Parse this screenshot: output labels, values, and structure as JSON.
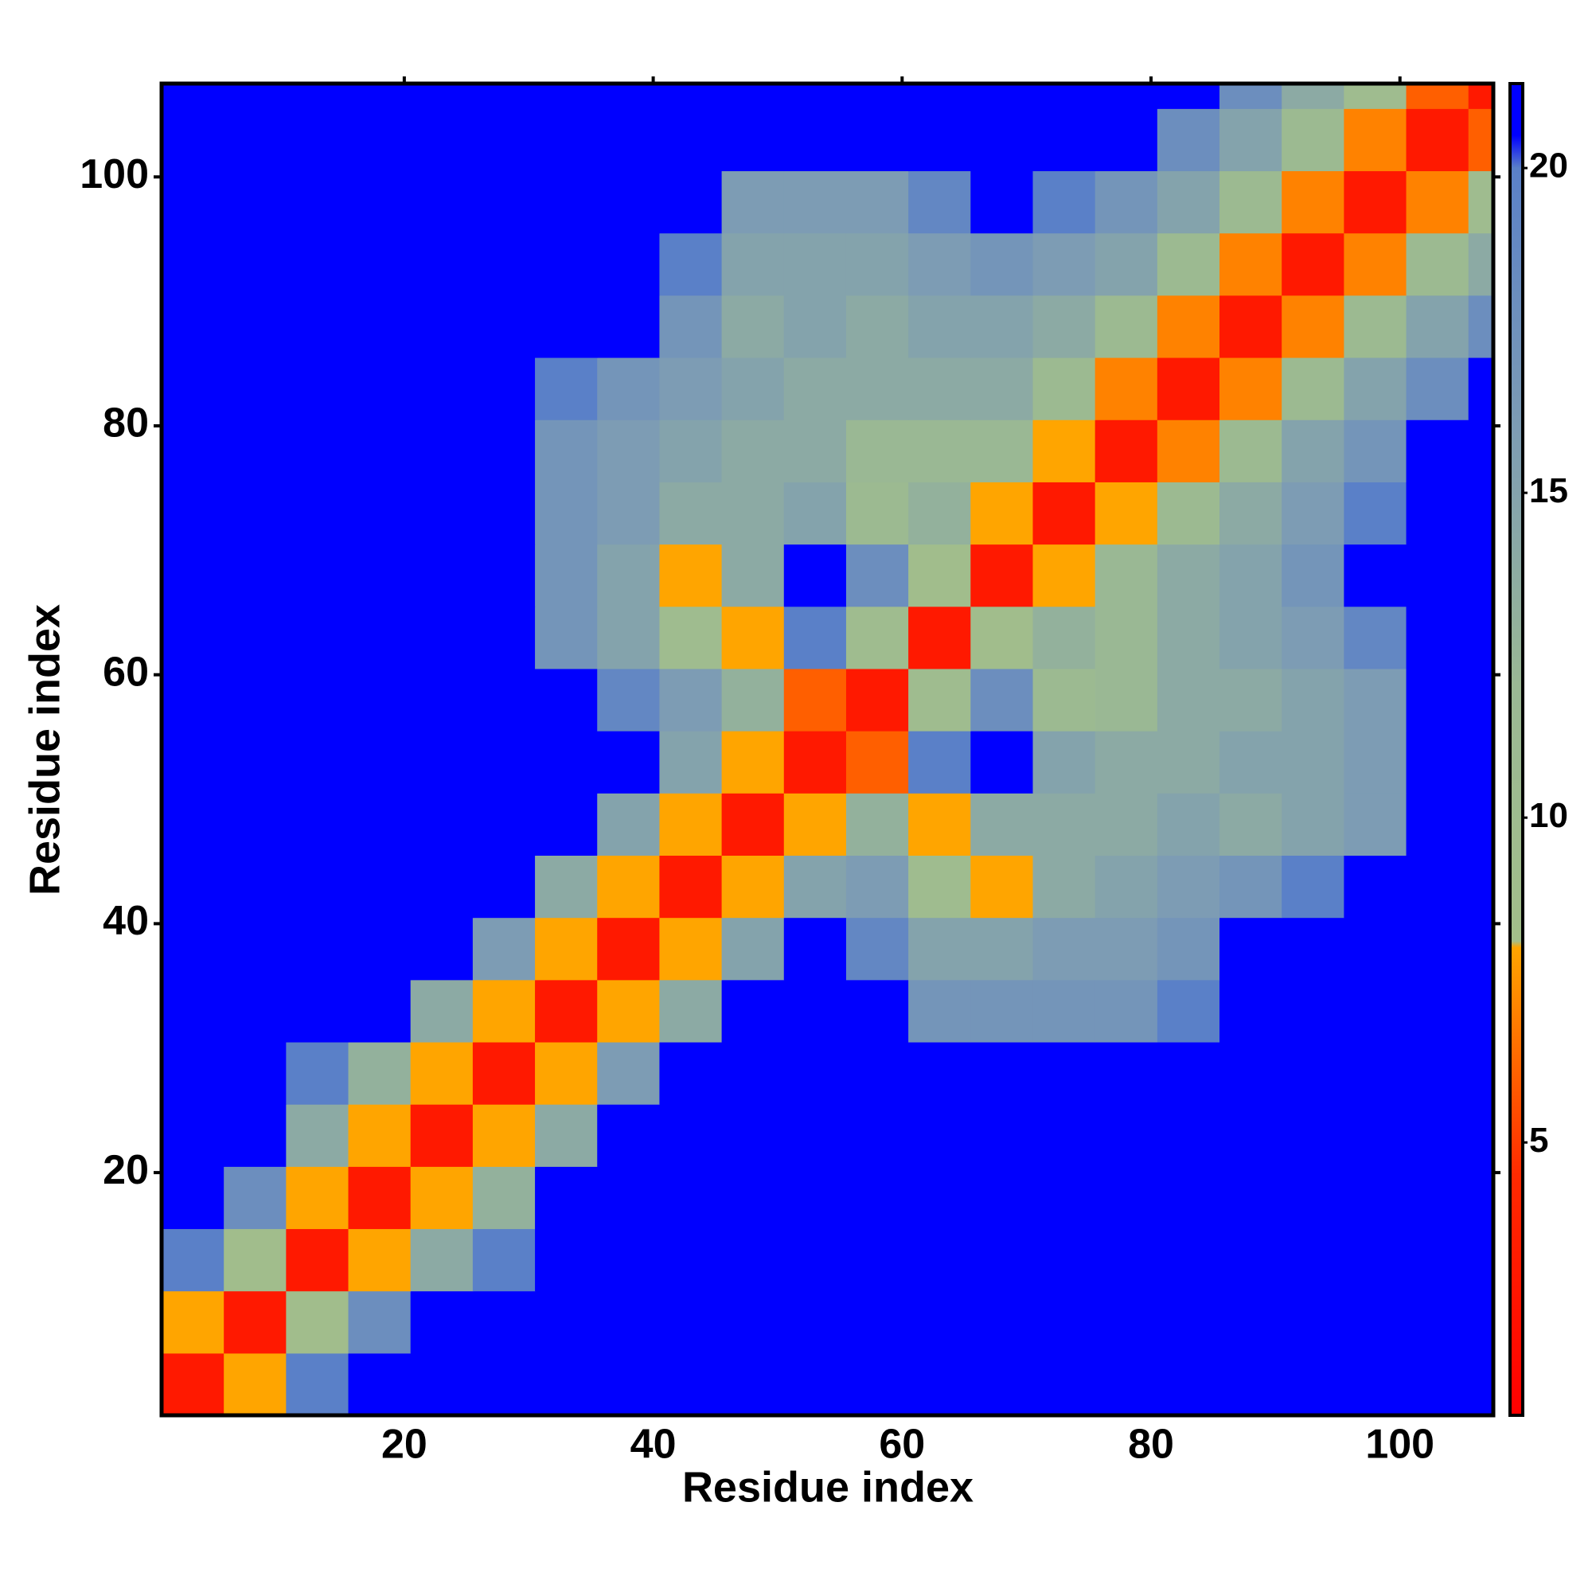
{
  "chart_data": {
    "type": "heatmap",
    "xlabel": "Residue index",
    "ylabel": "Residue index",
    "x_edges": [
      0.5,
      5.5,
      10.5,
      15.5,
      20.5,
      25.5,
      30.5,
      35.5,
      40.5,
      45.5,
      50.5,
      55.5,
      60.5,
      65.5,
      70.5,
      75.5,
      80.5,
      85.5,
      90.5,
      95.5,
      100.5,
      105.5,
      107.5
    ],
    "y_edges": [
      0.5,
      5.5,
      10.5,
      15.5,
      20.5,
      25.5,
      30.5,
      35.5,
      40.5,
      45.5,
      50.5,
      55.5,
      60.5,
      65.5,
      70.5,
      75.5,
      80.5,
      85.5,
      90.5,
      95.5,
      100.5,
      105.5,
      107.5
    ],
    "values": [
      [
        3,
        8,
        20,
        25,
        25,
        25,
        25,
        25,
        25,
        25,
        25,
        25,
        25,
        25,
        25,
        25,
        25,
        25,
        25,
        25,
        25,
        25
      ],
      [
        8,
        3,
        9,
        18,
        25,
        25,
        25,
        25,
        25,
        25,
        25,
        25,
        25,
        25,
        25,
        25,
        25,
        25,
        25,
        25,
        25,
        25
      ],
      [
        20,
        9,
        3,
        8,
        14,
        20,
        25,
        25,
        25,
        25,
        25,
        25,
        25,
        25,
        25,
        25,
        25,
        25,
        25,
        25,
        25,
        25
      ],
      [
        25,
        18,
        8,
        3,
        8,
        13,
        22,
        25,
        25,
        25,
        25,
        25,
        25,
        25,
        25,
        25,
        25,
        25,
        25,
        25,
        25,
        25
      ],
      [
        25,
        25,
        14,
        8,
        3,
        8,
        14,
        25,
        25,
        25,
        25,
        25,
        25,
        25,
        25,
        25,
        25,
        25,
        25,
        25,
        25,
        25
      ],
      [
        25,
        25,
        20,
        13,
        8,
        3,
        8,
        16,
        25,
        25,
        25,
        25,
        25,
        25,
        25,
        25,
        25,
        25,
        25,
        25,
        25,
        25
      ],
      [
        25,
        25,
        25,
        22,
        14,
        8,
        3,
        8,
        14,
        22,
        25,
        25,
        17,
        17,
        17,
        17,
        20,
        25,
        25,
        25,
        25,
        25
      ],
      [
        25,
        25,
        25,
        25,
        25,
        16,
        8,
        3,
        8,
        15,
        25,
        19,
        15,
        15,
        16,
        16,
        17,
        22,
        25,
        25,
        25,
        25
      ],
      [
        25,
        25,
        25,
        25,
        25,
        25,
        14,
        8,
        3,
        8,
        15,
        16,
        10,
        8,
        14,
        15,
        16,
        17,
        20,
        25,
        25,
        25
      ],
      [
        25,
        25,
        25,
        25,
        25,
        25,
        22,
        15,
        8,
        3,
        8,
        13,
        8,
        14,
        14,
        14,
        15,
        14,
        15,
        16,
        25,
        25
      ],
      [
        25,
        25,
        25,
        25,
        25,
        25,
        25,
        25,
        15,
        8,
        3,
        6,
        20,
        25,
        15,
        14,
        14,
        15,
        15,
        16,
        21,
        25
      ],
      [
        25,
        25,
        25,
        25,
        25,
        25,
        25,
        19,
        16,
        13,
        6,
        3,
        10,
        18,
        11,
        12,
        14,
        14,
        15,
        16,
        22,
        25
      ],
      [
        25,
        25,
        25,
        25,
        25,
        25,
        17,
        15,
        10,
        8,
        20,
        10,
        3,
        9,
        13,
        12,
        14,
        15,
        16,
        19,
        25,
        25
      ],
      [
        25,
        25,
        25,
        25,
        25,
        25,
        17,
        15,
        8,
        14,
        25,
        18,
        9,
        3,
        8,
        12,
        14,
        15,
        17,
        25,
        25,
        25
      ],
      [
        25,
        25,
        25,
        25,
        25,
        25,
        17,
        16,
        14,
        14,
        15,
        11,
        13,
        8,
        3,
        8,
        11,
        14,
        16,
        20,
        25,
        25
      ],
      [
        25,
        25,
        25,
        25,
        25,
        25,
        17,
        16,
        15,
        14,
        14,
        12,
        12,
        12,
        8,
        3,
        7,
        11,
        15,
        17,
        25,
        25
      ],
      [
        25,
        25,
        25,
        25,
        25,
        25,
        20,
        17,
        16,
        15,
        14,
        14,
        14,
        14,
        11,
        7,
        3,
        7,
        11,
        15,
        18,
        22
      ],
      [
        25,
        25,
        25,
        25,
        25,
        25,
        25,
        22,
        17,
        14,
        15,
        14,
        15,
        15,
        14,
        11,
        7,
        3,
        7,
        11,
        15,
        18
      ],
      [
        25,
        25,
        25,
        25,
        25,
        25,
        25,
        25,
        20,
        15,
        15,
        15,
        16,
        17,
        16,
        15,
        11,
        7,
        3,
        7,
        11,
        14
      ],
      [
        25,
        25,
        25,
        25,
        25,
        25,
        25,
        25,
        25,
        16,
        16,
        16,
        19,
        25,
        20,
        17,
        15,
        11,
        7,
        3,
        7,
        10
      ],
      [
        25,
        25,
        25,
        25,
        25,
        25,
        25,
        25,
        25,
        25,
        21,
        22,
        25,
        25,
        25,
        25,
        18,
        15,
        11,
        7,
        3,
        6
      ],
      [
        25,
        25,
        25,
        25,
        25,
        25,
        25,
        25,
        25,
        25,
        25,
        25,
        25,
        25,
        25,
        25,
        22,
        18,
        14,
        10,
        6,
        3
      ]
    ],
    "xlim": [
      0.5,
      107.5
    ],
    "xticks": [
      20,
      40,
      60,
      80,
      100
    ],
    "ylim": [
      0.5,
      107.5
    ],
    "yticks": [
      20,
      40,
      60,
      80,
      100
    ],
    "colorscale": [
      [
        0.8,
        "#ff0000"
      ],
      [
        4.5,
        "#ff2a00"
      ],
      [
        8,
        "#ffa500"
      ],
      [
        8.1,
        "#a3bf8a"
      ],
      [
        12,
        "#9ab894"
      ],
      [
        16,
        "#7d9cb4"
      ],
      [
        20,
        "#5a80c8"
      ],
      [
        20.5,
        "#0000ff"
      ],
      [
        21.3,
        "#0000ff"
      ]
    ],
    "colorbar": {
      "lim": [
        0.8,
        21.3
      ],
      "ticks": [
        5,
        10,
        15,
        20
      ]
    }
  }
}
